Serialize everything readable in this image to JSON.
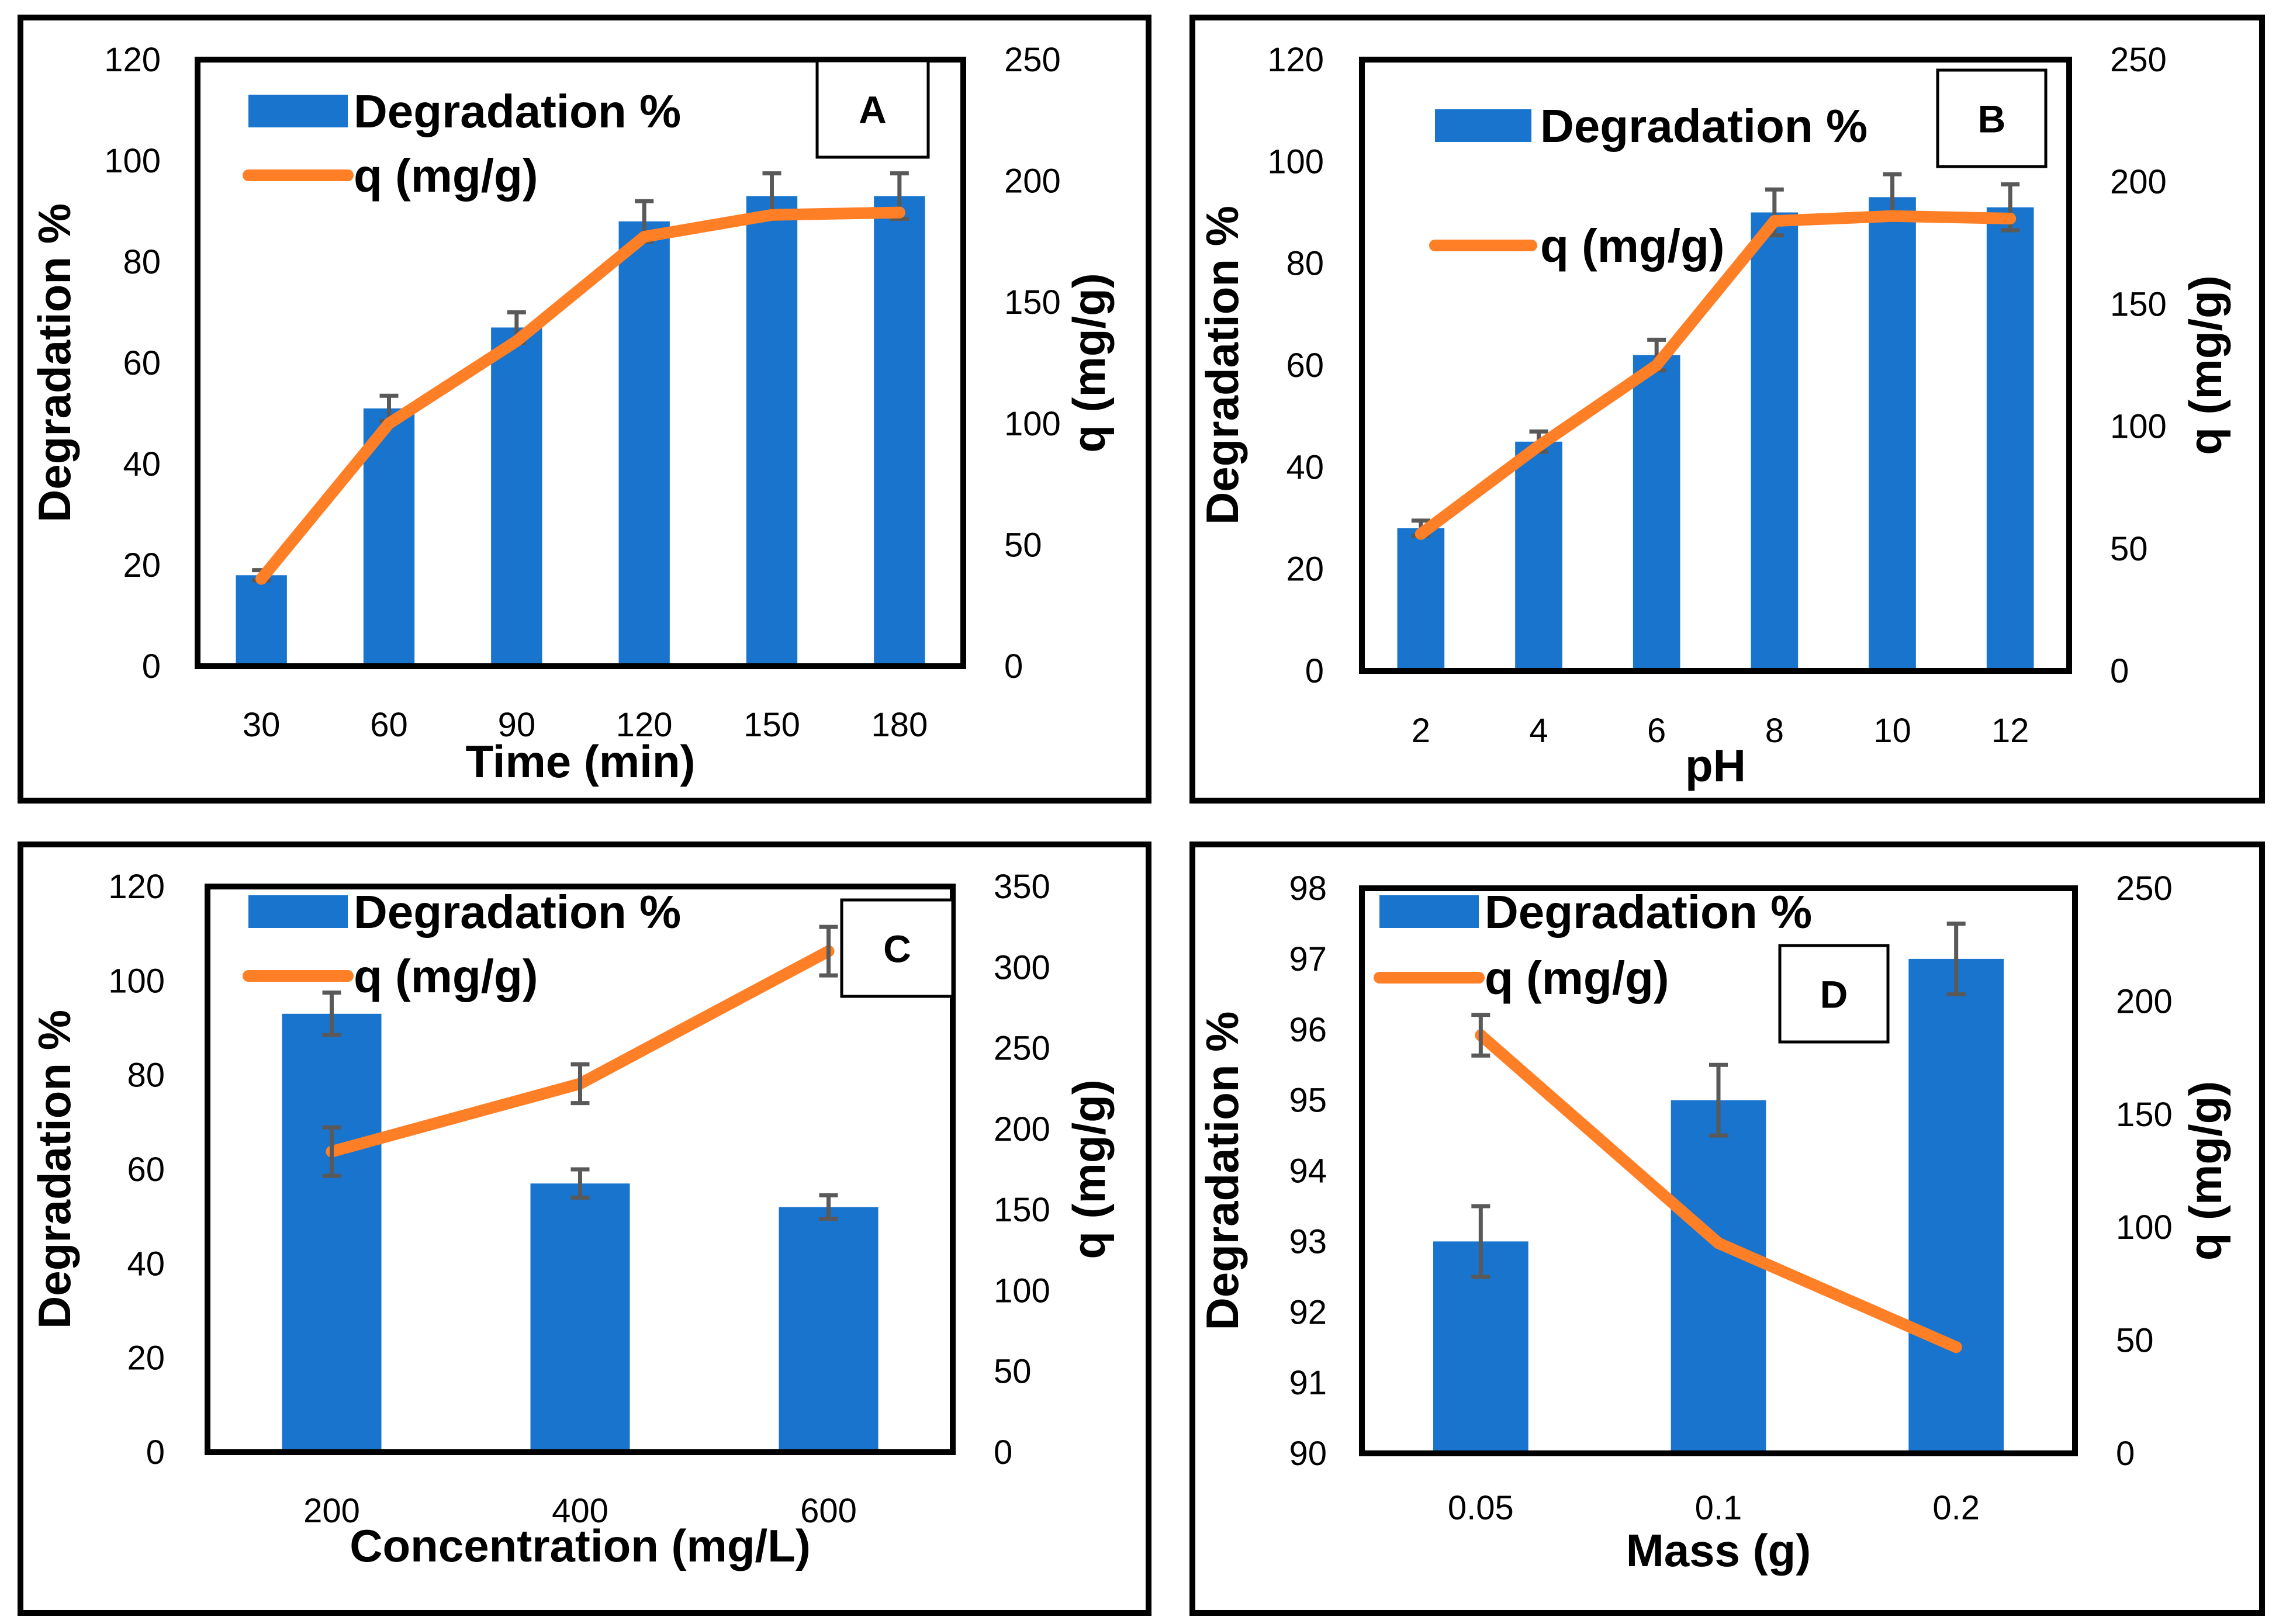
{
  "colors": {
    "bar": "#1874cd",
    "line": "#ff7f27",
    "error": "#595959"
  },
  "chart_data": [
    {
      "id": "A",
      "type": "bar+line",
      "tag": "A",
      "xlabel": "Time (min)",
      "ylabel_left": "Degradation %",
      "ylabel_right": "q (mg/g)",
      "legend": {
        "bar": "Degradation %",
        "line": "q (mg/g)"
      },
      "categories": [
        "30",
        "60",
        "90",
        "120",
        "150",
        "180"
      ],
      "left_ylim": [
        0,
        120
      ],
      "left_ticks": [
        0,
        20,
        40,
        60,
        80,
        100,
        120
      ],
      "right_ylim": [
        0,
        250
      ],
      "right_ticks": [
        0,
        50,
        100,
        150,
        200,
        250
      ],
      "series": [
        {
          "name": "Degradation %",
          "axis": "left",
          "type": "bar",
          "values": [
            18,
            51,
            67,
            88,
            93,
            93
          ],
          "errors": [
            1,
            2.5,
            3,
            4,
            4.5,
            4.5
          ]
        },
        {
          "name": "q (mg/g)",
          "axis": "right",
          "type": "line",
          "values": [
            36,
            100,
            134,
            177,
            186,
            187
          ]
        }
      ]
    },
    {
      "id": "B",
      "type": "bar+line",
      "tag": "B",
      "xlabel": "pH",
      "ylabel_left": "Degradation %",
      "ylabel_right": "q (mg/g)",
      "legend": {
        "bar": "Degradation %",
        "line": "q (mg/g)"
      },
      "categories": [
        "2",
        "4",
        "6",
        "8",
        "10",
        "12"
      ],
      "left_ylim": [
        0,
        120
      ],
      "left_ticks": [
        0,
        20,
        40,
        60,
        80,
        100,
        120
      ],
      "right_ylim": [
        0,
        250
      ],
      "right_ticks": [
        0,
        50,
        100,
        150,
        200,
        250
      ],
      "series": [
        {
          "name": "Degradation %",
          "axis": "left",
          "type": "bar",
          "values": [
            28,
            45,
            62,
            90,
            93,
            91
          ],
          "errors": [
            1.5,
            2,
            3,
            4.5,
            4.5,
            4.5
          ]
        },
        {
          "name": "q (mg/g)",
          "axis": "right",
          "type": "line",
          "values": [
            56,
            92,
            125,
            184,
            186,
            185
          ]
        }
      ]
    },
    {
      "id": "C",
      "type": "bar+line",
      "tag": "C",
      "xlabel": "Concentration (mg/L)",
      "ylabel_left": "Degradation %",
      "ylabel_right": "q (mg/g)",
      "legend": {
        "bar": "Degradation %",
        "line": "q (mg/g)"
      },
      "categories": [
        "200",
        "400",
        "600"
      ],
      "left_ylim": [
        0,
        120
      ],
      "left_ticks": [
        0,
        20,
        40,
        60,
        80,
        100,
        120
      ],
      "right_ylim": [
        0,
        350
      ],
      "right_ticks": [
        0,
        50,
        100,
        150,
        200,
        250,
        300,
        350
      ],
      "series": [
        {
          "name": "Degradation %",
          "axis": "left",
          "type": "bar",
          "values": [
            93,
            57,
            52
          ],
          "errors": [
            4.5,
            3,
            2.5
          ]
        },
        {
          "name": "q (mg/g)",
          "axis": "right",
          "type": "line",
          "values": [
            186,
            228,
            310
          ],
          "errors": [
            15,
            12,
            15
          ]
        }
      ]
    },
    {
      "id": "D",
      "type": "bar+line",
      "tag": "D",
      "xlabel": "Mass (g)",
      "ylabel_left": "Degradation %",
      "ylabel_right": "q (mg/g)",
      "legend": {
        "bar": "Degradation %",
        "line": "q (mg/g)"
      },
      "categories": [
        "0.05",
        "0.1",
        "0.2"
      ],
      "left_ylim": [
        90,
        98
      ],
      "left_ticks": [
        90,
        91,
        92,
        93,
        94,
        95,
        96,
        97,
        98
      ],
      "right_ylim": [
        0,
        250
      ],
      "right_ticks": [
        0,
        50,
        100,
        150,
        200,
        250
      ],
      "series": [
        {
          "name": "Degradation %",
          "axis": "left",
          "type": "bar",
          "values": [
            93,
            95,
            97
          ],
          "errors": [
            0.5,
            0.5,
            0.5
          ]
        },
        {
          "name": "q (mg/g)",
          "axis": "right",
          "type": "line",
          "values": [
            185,
            93,
            47
          ],
          "errors": [
            9,
            0,
            0
          ]
        }
      ]
    }
  ]
}
